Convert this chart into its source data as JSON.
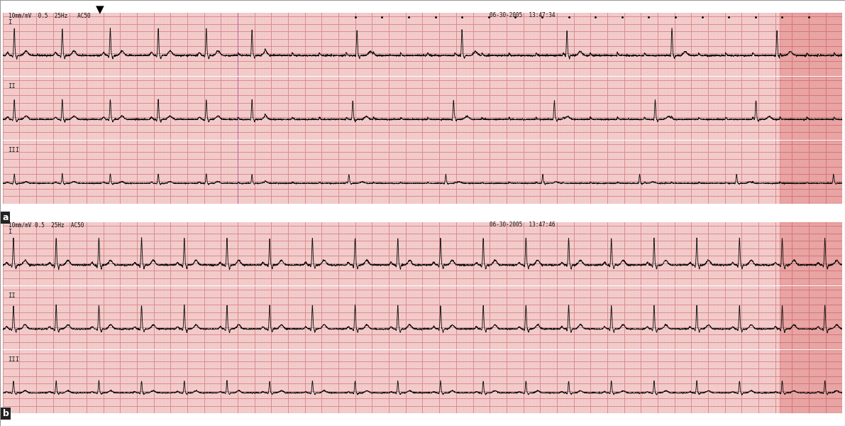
{
  "fig_width": 11.91,
  "fig_height": 6.0,
  "dpi": 100,
  "bg_color": "#FFFFFF",
  "ecg_grid_major_color": "#D88888",
  "ecg_grid_minor_color": "#EEC0C0",
  "ecg_line_color": "#111111",
  "panel_a_text_top": "10mm/mV  0.5  25Hz   AC50",
  "panel_a_date": "06-30-2005  13:47:34",
  "panel_b_text_top": "10mm/mV 0.5  25Hz  AC50",
  "panel_b_date": "06-30-2005  13:47:46",
  "facecolor": "#F5CECE",
  "lead_labels_a": [
    "I",
    "II",
    "III"
  ],
  "lead_labels_b": [
    "I",
    "II",
    "III"
  ]
}
